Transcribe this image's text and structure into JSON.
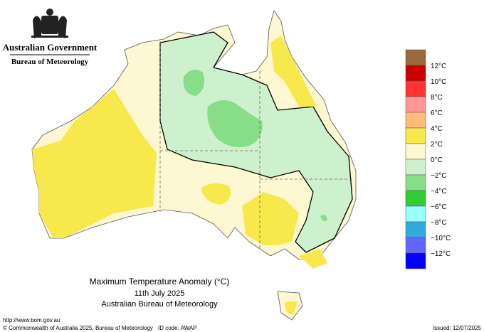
{
  "header": {
    "line1": "Australian Government",
    "line2": "Bureau of Meteorology"
  },
  "legend": {
    "colors": [
      "#9b6a3c",
      "#cc0000",
      "#ff3333",
      "#ff9999",
      "#ffbb77",
      "#f7e94b",
      "#fdf8d2",
      "#cdf0cd",
      "#88dd88",
      "#33cc33",
      "#99ffff",
      "#33aadd",
      "#6666ff",
      "#0000ff"
    ],
    "labels": [
      "12°C",
      "10°C",
      "8°C",
      "6°C",
      "4°C",
      "2°C",
      "0°C",
      "−2°C",
      "−4°C",
      "−6°C",
      "−8°C",
      "−10°C",
      "−12°C"
    ]
  },
  "title": {
    "line1": "Maximum Temperature Anomaly (°C)",
    "line2": "11th July 2025",
    "line3": "Australian Bureau of Meteorology"
  },
  "footer": {
    "url": "http://www.bom.gov.au",
    "copyright": "© Commonwealth of Australia 2025, Bureau of Meteorology",
    "id_code": "ID code: AWAP",
    "issued": "Issued: 12/07/2025"
  }
}
